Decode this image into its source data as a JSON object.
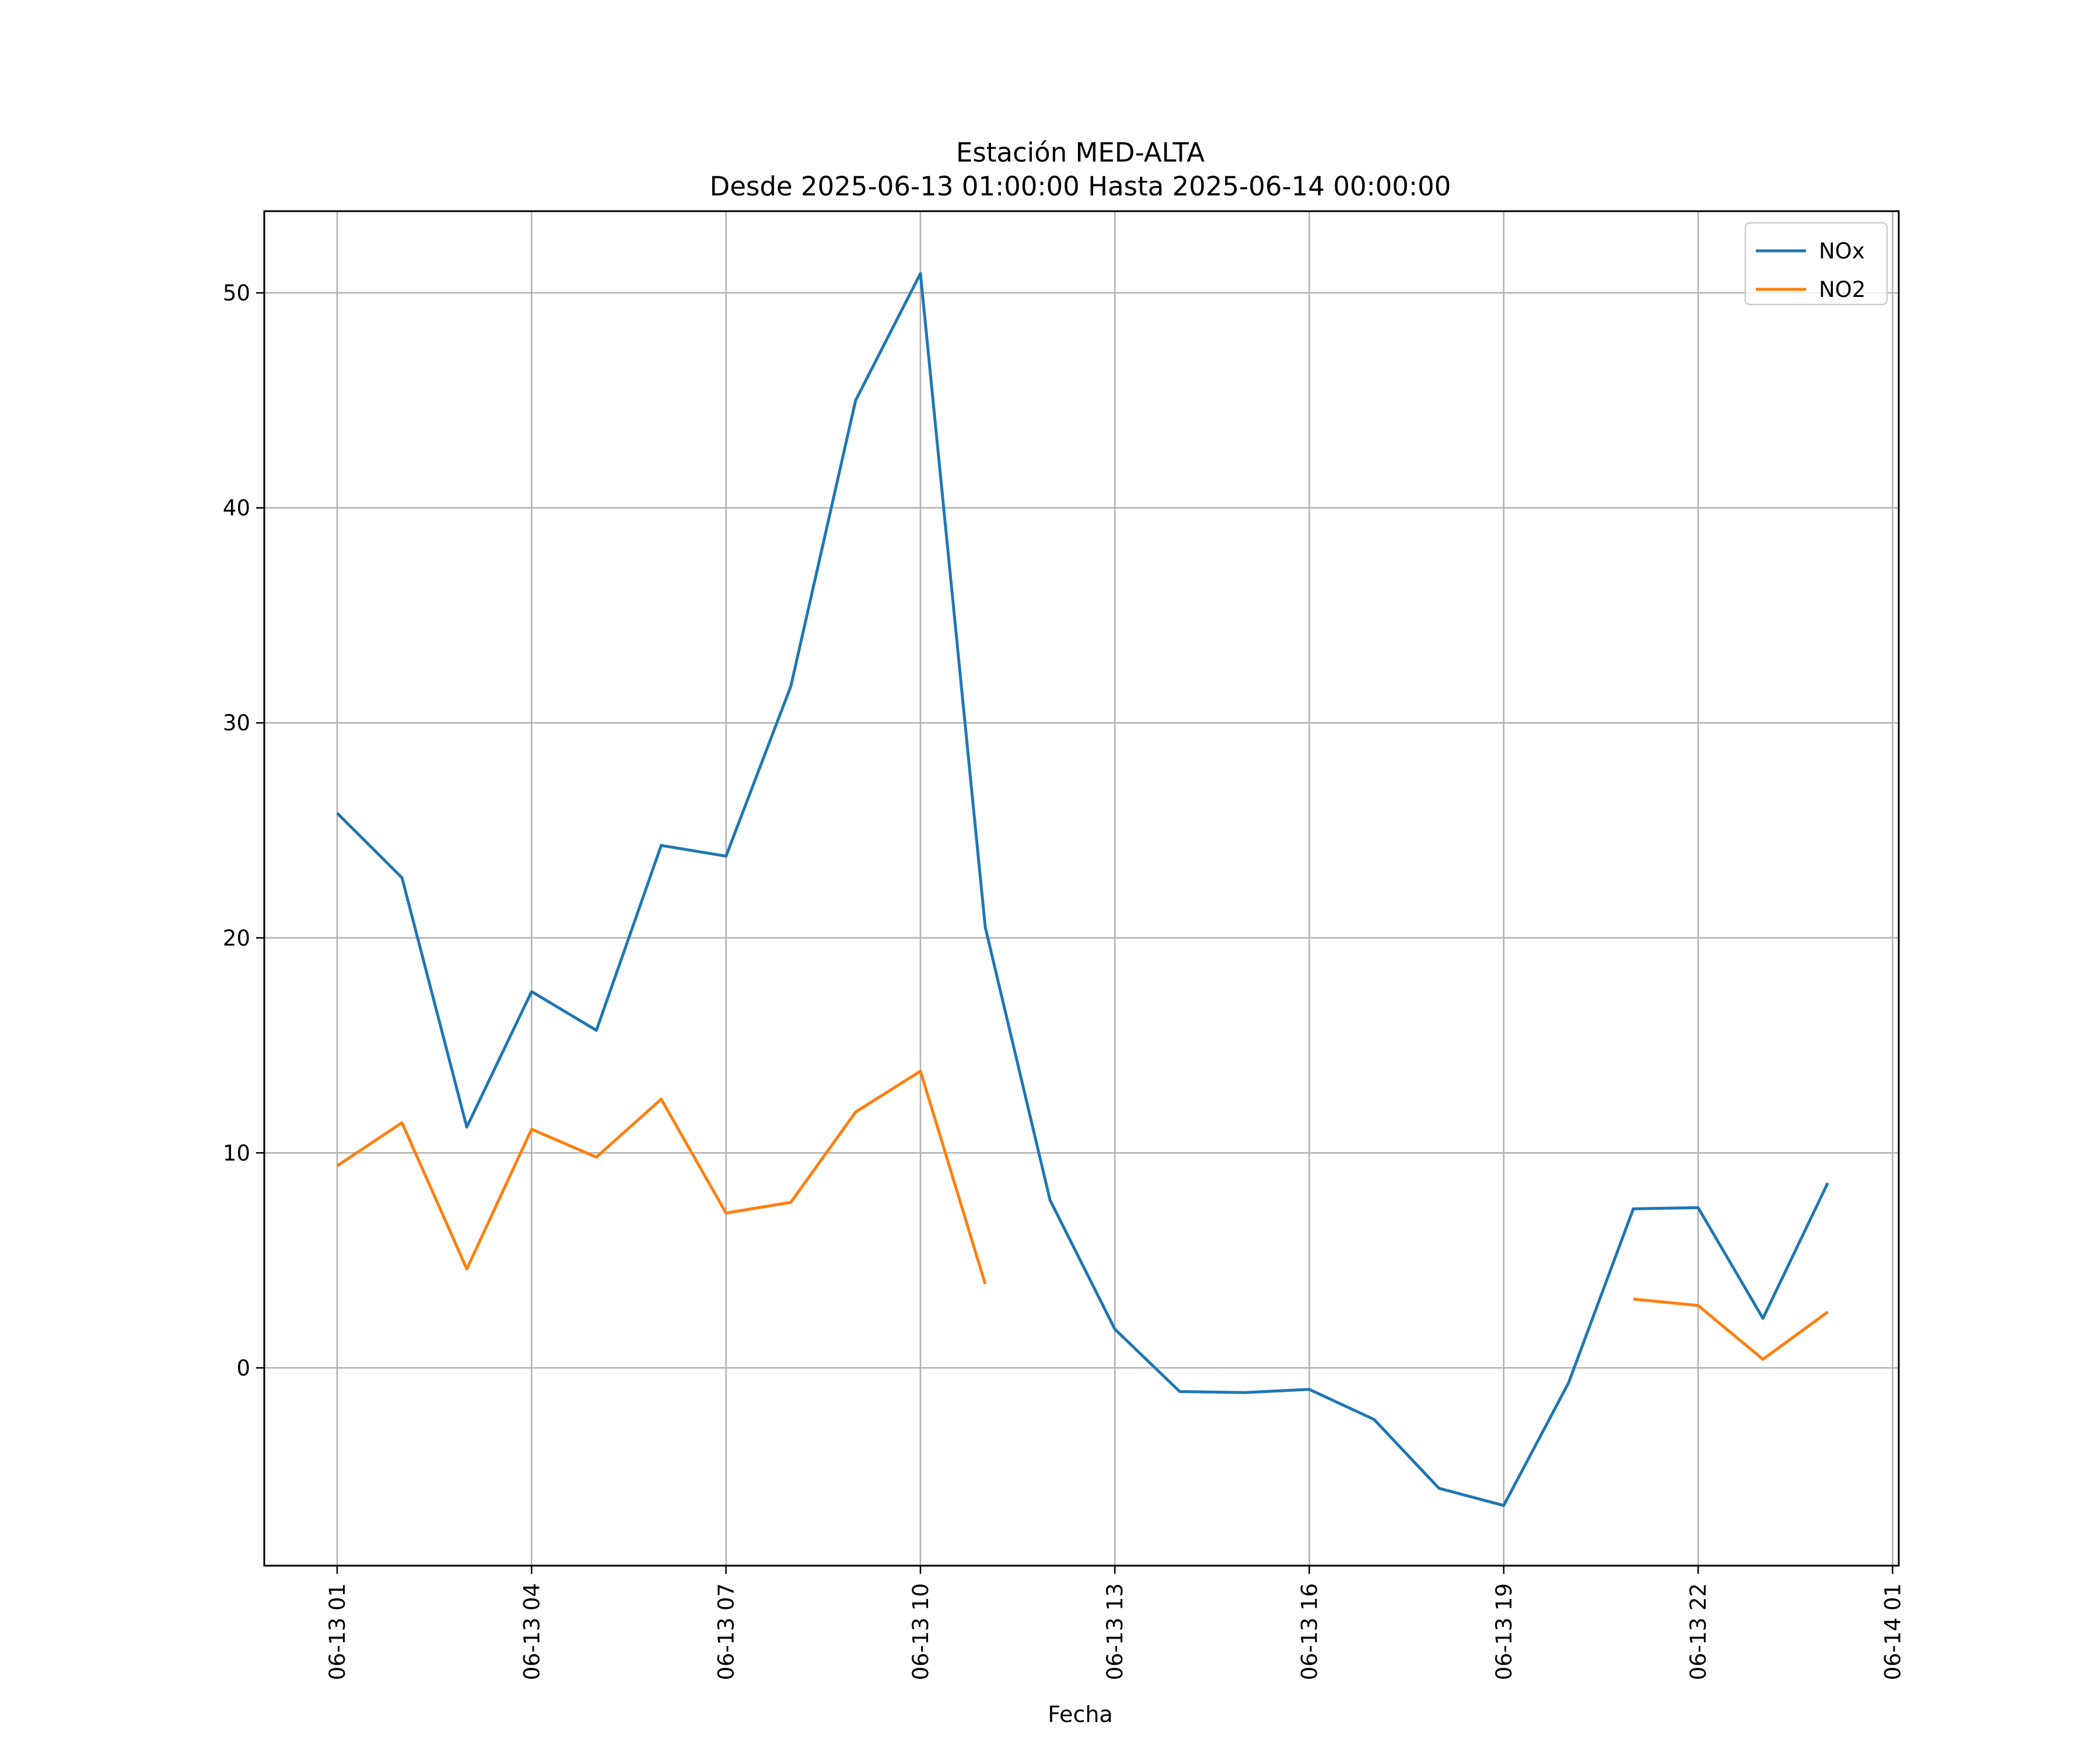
{
  "chart_data": {
    "type": "line",
    "title": "Estación MED-ALTA",
    "subtitle": "Desde 2025-06-13 01:00:00 Hasta 2025-06-14 00:00:00",
    "xlabel": "Fecha",
    "ylabel": "",
    "x": [
      "06-13 01",
      "06-13 02",
      "06-13 03",
      "06-13 04",
      "06-13 05",
      "06-13 06",
      "06-13 07",
      "06-13 08",
      "06-13 09",
      "06-13 10",
      "06-13 11",
      "06-13 12",
      "06-13 13",
      "06-13 14",
      "06-13 15",
      "06-13 16",
      "06-13 17",
      "06-13 18",
      "06-13 19",
      "06-13 20",
      "06-13 21",
      "06-13 22",
      "06-13 23",
      "06-14 00"
    ],
    "xlim": [
      "06-13 00:00",
      "06-14 01:08"
    ],
    "ylim": [
      -9.2,
      53.8
    ],
    "x_ticks": [
      "06-13 01",
      "06-13 04",
      "06-13 07",
      "06-13 10",
      "06-13 13",
      "06-13 16",
      "06-13 19",
      "06-13 22",
      "06-14 01"
    ],
    "y_ticks": [
      0,
      10,
      20,
      30,
      40,
      50
    ],
    "grid": true,
    "legend_position": "top-right",
    "series": [
      {
        "name": "NOx",
        "color": "#1f77b4",
        "values": [
          25.8,
          22.8,
          11.2,
          17.5,
          15.7,
          24.3,
          23.8,
          31.7,
          45.0,
          50.9,
          20.5,
          7.8,
          1.8,
          -1.1,
          -1.15,
          -1.0,
          -2.4,
          -5.6,
          -6.4,
          -0.7,
          7.4,
          7.45,
          2.3,
          8.6
        ]
      },
      {
        "name": "NO2",
        "color": "#ff7f0e",
        "values": [
          9.4,
          11.4,
          4.6,
          11.1,
          9.8,
          12.5,
          7.2,
          7.7,
          11.9,
          13.8,
          3.9,
          null,
          null,
          null,
          null,
          null,
          null,
          null,
          null,
          null,
          3.2,
          2.9,
          0.4,
          2.6
        ]
      }
    ]
  }
}
